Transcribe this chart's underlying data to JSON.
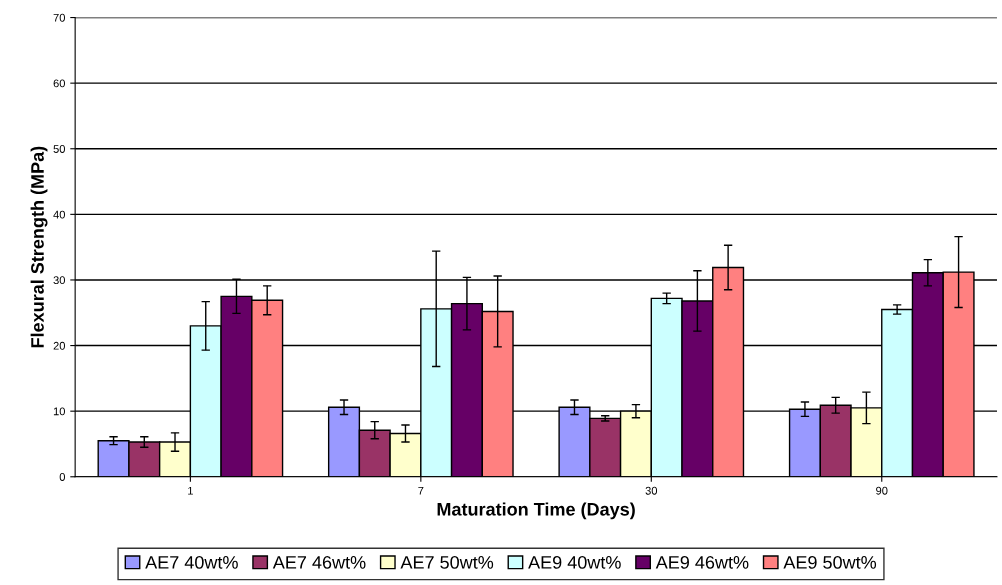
{
  "chart_data": {
    "type": "bar",
    "xlabel": "Maturation Time (Days)",
    "ylabel": "Flexural Strength (MPa)",
    "categories": [
      "1",
      "7",
      "30",
      "90"
    ],
    "series": [
      {
        "name": "AE7 40wt%",
        "color": "#9999ff",
        "values": [
          5.5,
          10.6,
          10.6,
          10.3
        ],
        "errors": [
          0.6,
          1.1,
          1.1,
          1.1
        ]
      },
      {
        "name": "AE7 46wt%",
        "color": "#993366",
        "values": [
          5.3,
          7.1,
          8.9,
          10.9
        ],
        "errors": [
          0.8,
          1.3,
          0.4,
          1.2
        ]
      },
      {
        "name": "AE7 50wt%",
        "color": "#ffffcc",
        "values": [
          5.3,
          6.6,
          10.0,
          10.5
        ],
        "errors": [
          1.4,
          1.3,
          1.0,
          2.4
        ]
      },
      {
        "name": "AE9 40wt%",
        "color": "#ccffff",
        "values": [
          23.0,
          25.6,
          27.2,
          25.5
        ],
        "errors": [
          3.7,
          8.8,
          0.8,
          0.7
        ]
      },
      {
        "name": "AE9 46wt%",
        "color": "#660066",
        "values": [
          27.5,
          26.4,
          26.8,
          31.1
        ],
        "errors": [
          2.6,
          4.0,
          4.6,
          2.0
        ]
      },
      {
        "name": "AE9 50wt%",
        "color": "#ff8080",
        "values": [
          26.9,
          25.2,
          31.9,
          31.2
        ],
        "errors": [
          2.2,
          5.4,
          3.4,
          5.4
        ]
      }
    ],
    "ylim": [
      0,
      70
    ],
    "yticks": [
      0,
      10,
      20,
      30,
      40,
      50,
      60,
      70
    ],
    "grid": "y",
    "legend": "bottom"
  }
}
